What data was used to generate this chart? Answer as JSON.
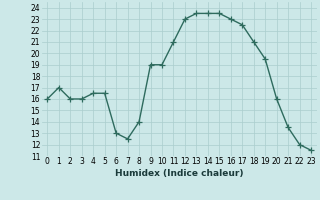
{
  "x": [
    0,
    1,
    2,
    3,
    4,
    5,
    6,
    7,
    8,
    9,
    10,
    11,
    12,
    13,
    14,
    15,
    16,
    17,
    18,
    19,
    20,
    21,
    22,
    23
  ],
  "y": [
    16.0,
    17.0,
    16.0,
    16.0,
    16.5,
    16.5,
    13.0,
    12.5,
    14.0,
    19.0,
    19.0,
    21.0,
    23.0,
    23.5,
    23.5,
    23.5,
    23.0,
    22.5,
    21.0,
    19.5,
    16.0,
    13.5,
    12.0,
    11.5
  ],
  "xlabel": "Humidex (Indice chaleur)",
  "ylim": [
    11,
    24.5
  ],
  "xlim": [
    -0.5,
    23.5
  ],
  "yticks": [
    11,
    12,
    13,
    14,
    15,
    16,
    17,
    18,
    19,
    20,
    21,
    22,
    23,
    24
  ],
  "xticks": [
    0,
    1,
    2,
    3,
    4,
    5,
    6,
    7,
    8,
    9,
    10,
    11,
    12,
    13,
    14,
    15,
    16,
    17,
    18,
    19,
    20,
    21,
    22,
    23
  ],
  "line_color": "#2e6b5e",
  "bg_color": "#cce8e8",
  "grid_color": "#aacece",
  "marker": "+",
  "marker_size": 4,
  "linewidth": 1.0,
  "tick_fontsize": 5.5,
  "xlabel_fontsize": 6.5
}
